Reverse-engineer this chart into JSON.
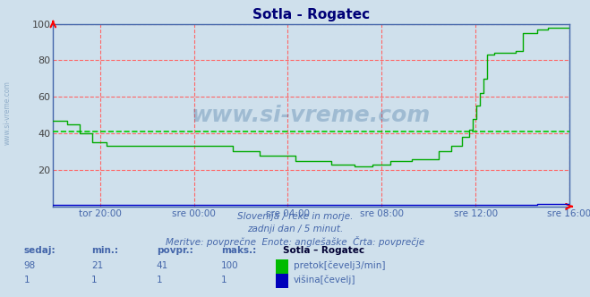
{
  "title": "Sotla - Rogatec",
  "background_color": "#cfe0ec",
  "plot_bg_color": "#cfe0ec",
  "line_color_flow": "#00aa00",
  "line_color_height": "#0000cc",
  "avg_line_color": "#00cc00",
  "avg_value": 41,
  "ylim": [
    0,
    100
  ],
  "yticks": [
    20,
    40,
    60,
    80,
    100
  ],
  "xlabel_color": "#4466aa",
  "title_color": "#000077",
  "subtitle_lines": [
    "Slovenija / reke in morje.",
    "zadnji dan / 5 minut.",
    "Meritve: povprečne  Enote: anglešaške  Črta: povprečje"
  ],
  "table_header": [
    "sedaj:",
    "min.:",
    "povpr.:",
    "maks.:",
    "Sotla – Rogatec"
  ],
  "table_row1": [
    "98",
    "21",
    "41",
    "100",
    "pretok[čevelj3/min]"
  ],
  "table_row2": [
    "1",
    "1",
    "1",
    "1",
    "višina[čevelj]"
  ],
  "legend_color_flow": "#00bb00",
  "legend_color_height": "#0000bb",
  "xtick_labels": [
    "tor 20:00",
    "sre 00:00",
    "sre 04:00",
    "sre 08:00",
    "sre 12:00",
    "sre 16:00"
  ],
  "n_points": 289,
  "watermark": "www.si-vreme.com",
  "left_watermark": "www.si-vreme.com"
}
